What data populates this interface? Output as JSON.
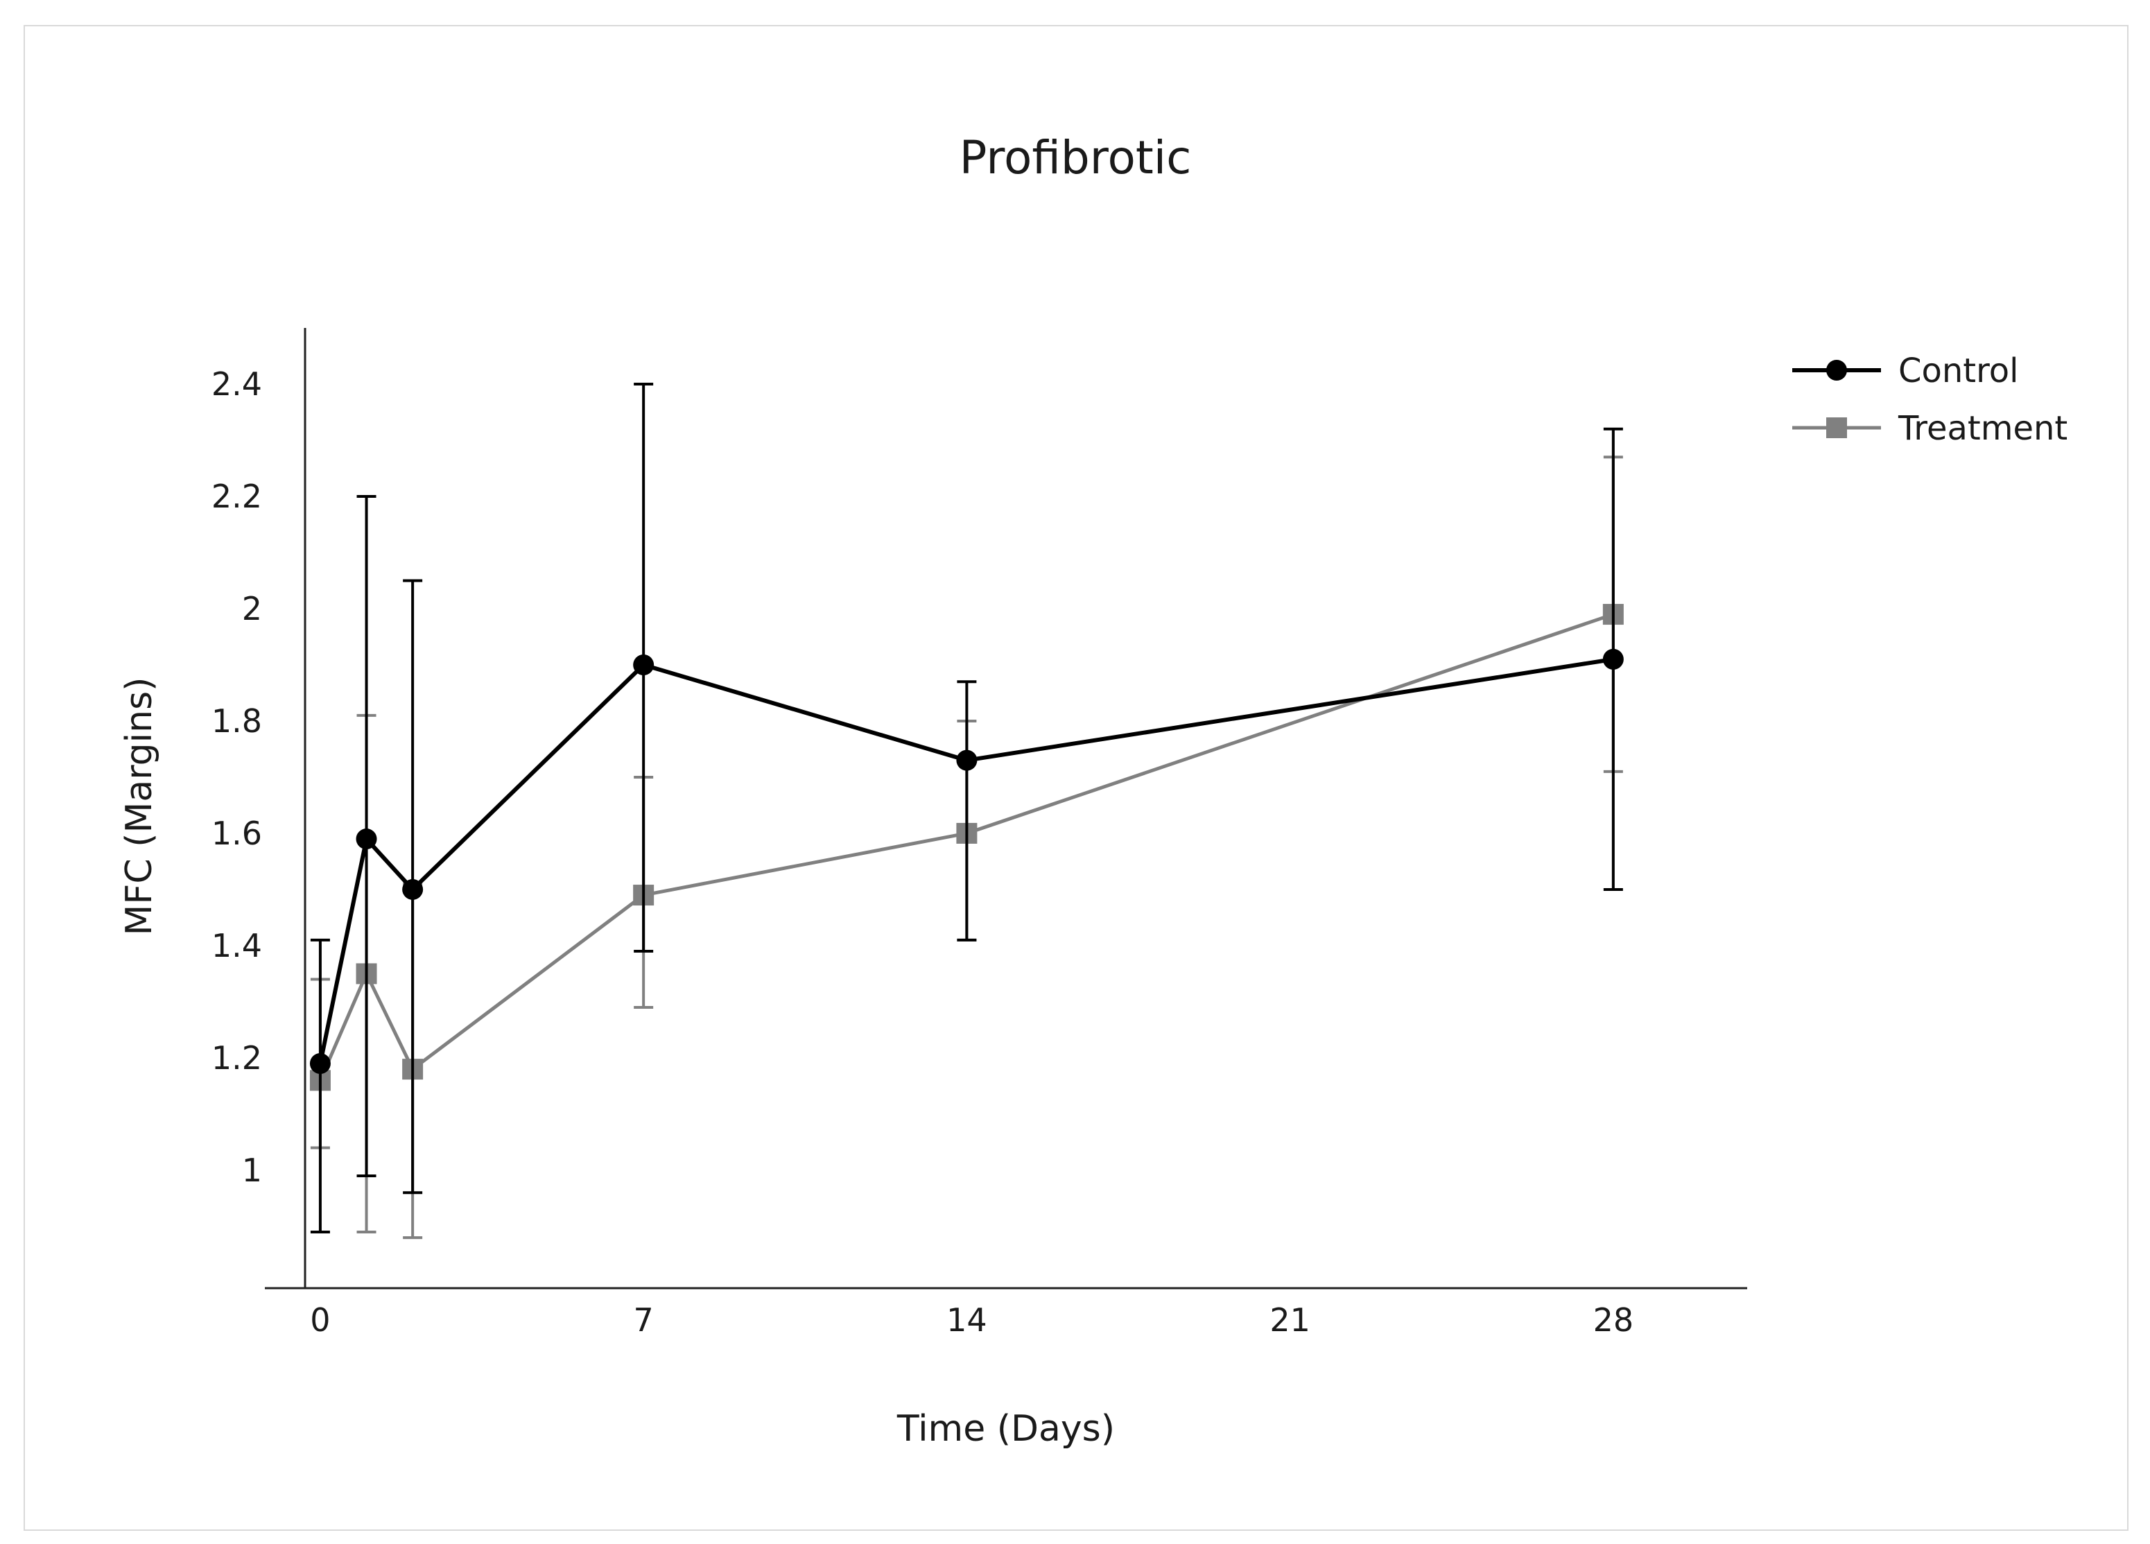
{
  "chart_data": {
    "type": "line",
    "title": "Profibrotic",
    "xlabel": "Time (Days)",
    "ylabel": "MFC (Margins)",
    "xlim": [
      -1.2,
      30.9
    ],
    "ylim": [
      0.79,
      2.5
    ],
    "x_ticks": [
      0,
      7,
      14,
      21,
      28
    ],
    "x_tick_labels": [
      "0",
      "7",
      "14",
      "21",
      "28"
    ],
    "y_ticks": [
      1,
      1.2,
      1.4,
      1.6,
      1.8,
      2,
      2.2,
      2.4
    ],
    "y_tick_labels": [
      "1",
      "1.2",
      "1.4",
      "1.6",
      "1.8",
      "2",
      "2.2",
      "2.4"
    ],
    "grid": false,
    "legend_position": "top-right",
    "series": [
      {
        "name": "Control",
        "color": "#000000",
        "marker": "circle",
        "x": [
          0,
          1,
          2,
          7,
          14,
          28
        ],
        "y": [
          1.19,
          1.59,
          1.5,
          1.9,
          1.73,
          1.91
        ],
        "err_low": [
          0.89,
          0.99,
          0.96,
          1.39,
          1.41,
          1.5
        ],
        "err_high": [
          1.41,
          2.2,
          2.05,
          2.4,
          1.87,
          2.32
        ]
      },
      {
        "name": "Treatment",
        "color": "#808080",
        "marker": "square",
        "x": [
          0,
          1,
          2,
          7,
          14,
          28
        ],
        "y": [
          1.16,
          1.35,
          1.18,
          1.49,
          1.6,
          1.99
        ],
        "err_low": [
          1.04,
          0.89,
          0.88,
          1.29,
          1.41,
          1.71
        ],
        "err_high": [
          1.34,
          1.81,
          1.51,
          1.7,
          1.8,
          2.27
        ]
      }
    ]
  }
}
